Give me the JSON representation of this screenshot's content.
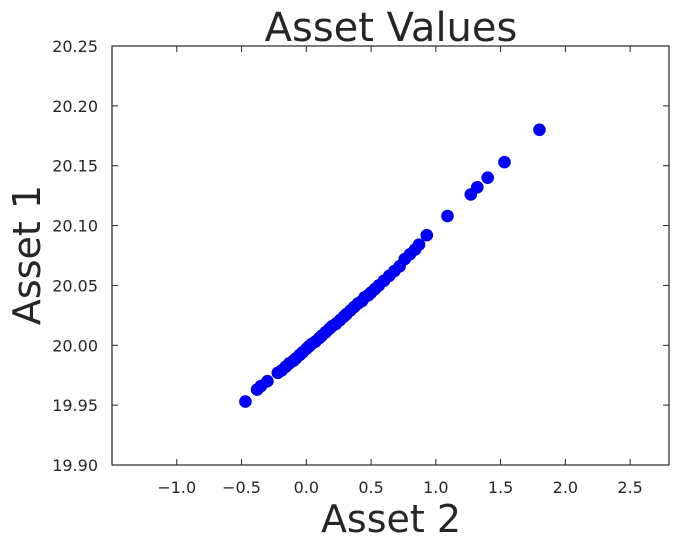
{
  "chart_data": {
    "type": "scatter",
    "title": "Asset Values",
    "xlabel": "Asset 2",
    "ylabel": "Asset 1",
    "xlim": [
      -1.5,
      2.8
    ],
    "ylim": [
      19.9,
      20.25
    ],
    "grid": false,
    "marker_color": "#0000ff",
    "xticks": [
      -1.0,
      -0.5,
      0.0,
      0.5,
      1.0,
      1.5,
      2.0,
      2.5
    ],
    "xtick_labels": [
      "−1.0",
      "−0.5",
      "0.0",
      "0.5",
      "1.0",
      "1.5",
      "2.0",
      "2.5"
    ],
    "yticks": [
      19.9,
      19.95,
      20.0,
      20.05,
      20.1,
      20.15,
      20.2,
      20.25
    ],
    "ytick_labels": [
      "19.90",
      "19.95",
      "20.00",
      "20.05",
      "20.10",
      "20.15",
      "20.20",
      "20.25"
    ],
    "points": [
      {
        "x": -0.47,
        "y": 19.953
      },
      {
        "x": -0.38,
        "y": 19.963
      },
      {
        "x": -0.35,
        "y": 19.966
      },
      {
        "x": -0.3,
        "y": 19.97
      },
      {
        "x": -0.22,
        "y": 19.977
      },
      {
        "x": -0.19,
        "y": 19.979
      },
      {
        "x": -0.16,
        "y": 19.982
      },
      {
        "x": -0.13,
        "y": 19.985
      },
      {
        "x": -0.1,
        "y": 19.987
      },
      {
        "x": -0.08,
        "y": 19.989
      },
      {
        "x": -0.05,
        "y": 19.992
      },
      {
        "x": -0.03,
        "y": 19.994
      },
      {
        "x": 0.0,
        "y": 19.997
      },
      {
        "x": 0.02,
        "y": 19.999
      },
      {
        "x": 0.04,
        "y": 20.001
      },
      {
        "x": 0.07,
        "y": 20.003
      },
      {
        "x": 0.1,
        "y": 20.006
      },
      {
        "x": 0.12,
        "y": 20.008
      },
      {
        "x": 0.15,
        "y": 20.011
      },
      {
        "x": 0.18,
        "y": 20.014
      },
      {
        "x": 0.2,
        "y": 20.016
      },
      {
        "x": 0.23,
        "y": 20.018
      },
      {
        "x": 0.26,
        "y": 20.021
      },
      {
        "x": 0.29,
        "y": 20.024
      },
      {
        "x": 0.31,
        "y": 20.026
      },
      {
        "x": 0.34,
        "y": 20.029
      },
      {
        "x": 0.37,
        "y": 20.032
      },
      {
        "x": 0.4,
        "y": 20.035
      },
      {
        "x": 0.43,
        "y": 20.037
      },
      {
        "x": 0.45,
        "y": 20.04
      },
      {
        "x": 0.48,
        "y": 20.042
      },
      {
        "x": 0.5,
        "y": 20.044
      },
      {
        "x": 0.53,
        "y": 20.047
      },
      {
        "x": 0.56,
        "y": 20.05
      },
      {
        "x": 0.6,
        "y": 20.054
      },
      {
        "x": 0.64,
        "y": 20.058
      },
      {
        "x": 0.68,
        "y": 20.062
      },
      {
        "x": 0.72,
        "y": 20.066
      },
      {
        "x": 0.76,
        "y": 20.072
      },
      {
        "x": 0.8,
        "y": 20.076
      },
      {
        "x": 0.84,
        "y": 20.08
      },
      {
        "x": 0.87,
        "y": 20.084
      },
      {
        "x": 0.93,
        "y": 20.092
      },
      {
        "x": 1.09,
        "y": 20.108
      },
      {
        "x": 1.27,
        "y": 20.126
      },
      {
        "x": 1.32,
        "y": 20.132
      },
      {
        "x": 1.4,
        "y": 20.14
      },
      {
        "x": 1.53,
        "y": 20.153
      },
      {
        "x": 1.8,
        "y": 20.18
      }
    ]
  }
}
